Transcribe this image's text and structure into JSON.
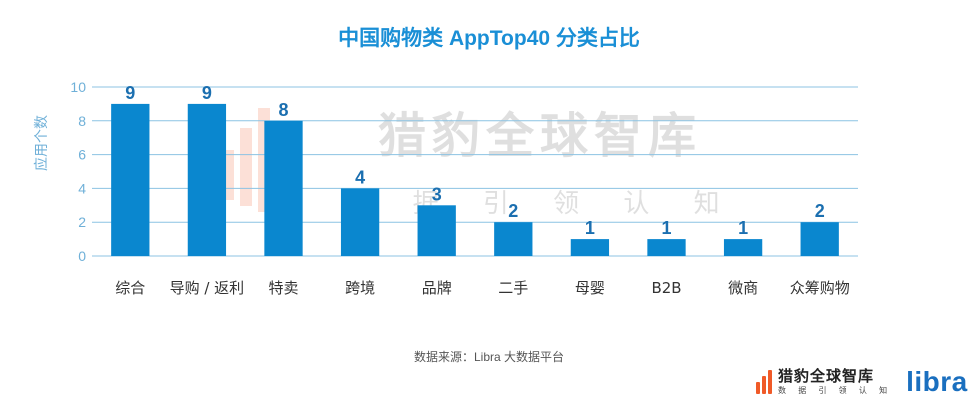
{
  "title": "中国购物类 AppTop40 分类占比",
  "source": "数据来源：Libra 大数据平台",
  "watermark": {
    "main": "猎豹全球智库",
    "sub": "数 据 引 领 认 知"
  },
  "brand": {
    "name": "猎豹全球智库",
    "tagline": "数 据 引 领 认 知",
    "partner": "libra"
  },
  "colors": {
    "bar": "#0a87cf",
    "title": "#1a8fd6",
    "label": "#1b6fb0",
    "axis": "#6fb0d8",
    "grid": "#8cc3e3",
    "brand_orange": "#f05a28",
    "libra": "#1a6fbf"
  },
  "chart_data": {
    "type": "bar",
    "title": "中国购物类 AppTop40 分类占比",
    "xlabel": "",
    "ylabel": "应用个数",
    "categories": [
      "综合",
      "导购 / 返利",
      "特卖",
      "跨境",
      "品牌",
      "二手",
      "母婴",
      "B2B",
      "微商",
      "众筹购物"
    ],
    "values": [
      9,
      9,
      8,
      4,
      3,
      2,
      1,
      1,
      1,
      2
    ],
    "ylim": [
      0,
      10
    ],
    "yticks": [
      0,
      2,
      4,
      6,
      8,
      10
    ],
    "grid": true,
    "data_labels": true
  }
}
